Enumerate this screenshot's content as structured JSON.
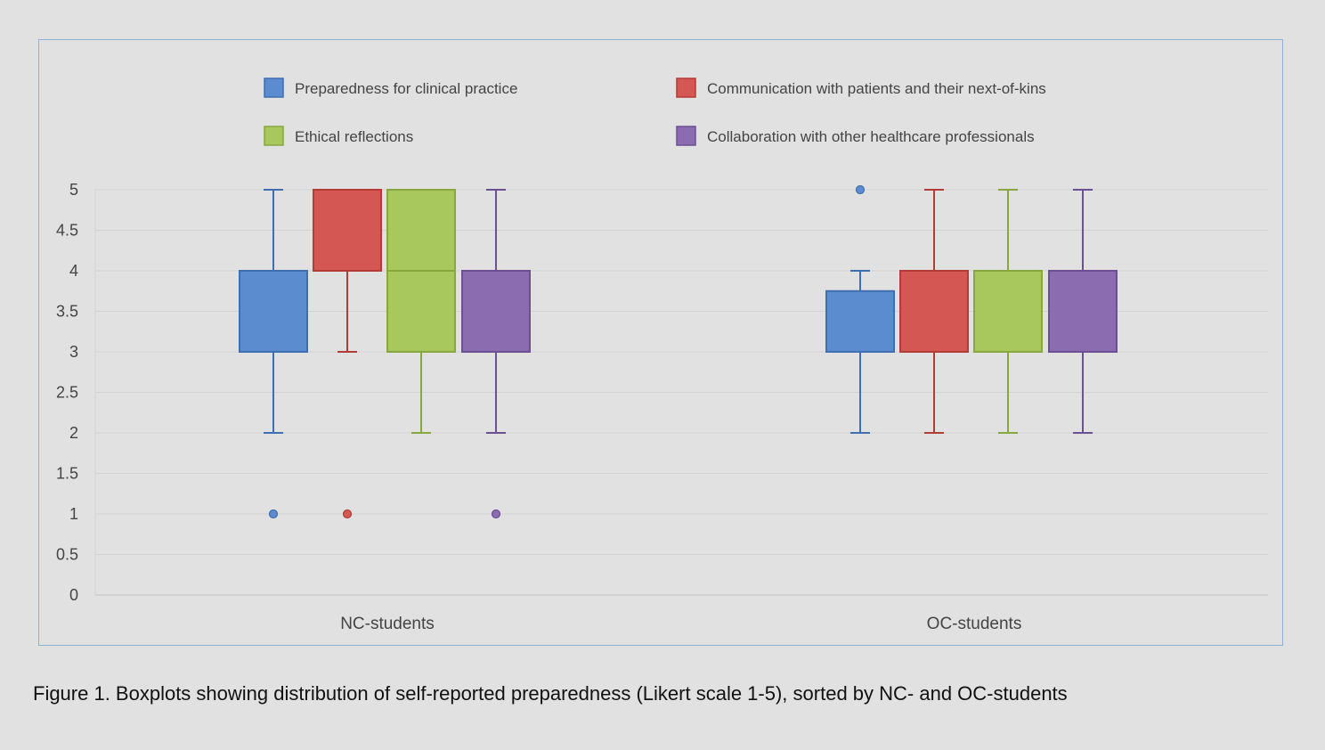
{
  "caption": "Figure 1. Boxplots showing distribution of self-reported preparedness (Likert scale 1-5), sorted by NC- and OC-students",
  "chart_data": {
    "type": "boxplot",
    "title": "",
    "xlabel": "",
    "ylabel": "",
    "ylim": [
      0,
      5
    ],
    "yticks": [
      "0",
      "0.5",
      "1",
      "1.5",
      "2",
      "2.5",
      "3",
      "3.5",
      "4",
      "4.5",
      "5"
    ],
    "grid": true,
    "legend_position": "top",
    "categories": [
      "NC-students",
      "OC-students"
    ],
    "series": [
      {
        "name": "Preparedness for clinical practice",
        "color": "#5b8ccf",
        "stroke": "#3f6fb0",
        "boxes": [
          {
            "whisker_low": 2,
            "q1": 3,
            "median": 3,
            "q3": 4,
            "whisker_high": 5,
            "outliers": [
              1
            ]
          },
          {
            "whisker_low": 2,
            "q1": 3,
            "median": 3,
            "q3": 3.75,
            "whisker_high": 4,
            "outliers": [
              5
            ]
          }
        ]
      },
      {
        "name": "Communication with patients and their next-of-kins",
        "color": "#d45753",
        "stroke": "#b33c39",
        "boxes": [
          {
            "whisker_low": 3,
            "q1": 4,
            "median": 4,
            "q3": 5,
            "whisker_high": 5,
            "outliers": [
              1
            ]
          },
          {
            "whisker_low": 2,
            "q1": 3,
            "median": 3,
            "q3": 4,
            "whisker_high": 5,
            "outliers": []
          }
        ]
      },
      {
        "name": "Ethical reflections",
        "color": "#a8c85d",
        "stroke": "#86a83e",
        "boxes": [
          {
            "whisker_low": 2,
            "q1": 3,
            "median": 4,
            "q3": 5,
            "whisker_high": 5,
            "outliers": []
          },
          {
            "whisker_low": 2,
            "q1": 3,
            "median": 3,
            "q3": 4,
            "whisker_high": 5,
            "outliers": []
          }
        ]
      },
      {
        "name": "Collaboration with other healthcare professionals",
        "color": "#8c6cb0",
        "stroke": "#6d4f93",
        "boxes": [
          {
            "whisker_low": 2,
            "q1": 3,
            "median": 3,
            "q3": 4,
            "whisker_high": 5,
            "outliers": [
              1
            ]
          },
          {
            "whisker_low": 2,
            "q1": 3,
            "median": 3,
            "q3": 4,
            "whisker_high": 5,
            "outliers": []
          }
        ]
      }
    ]
  }
}
